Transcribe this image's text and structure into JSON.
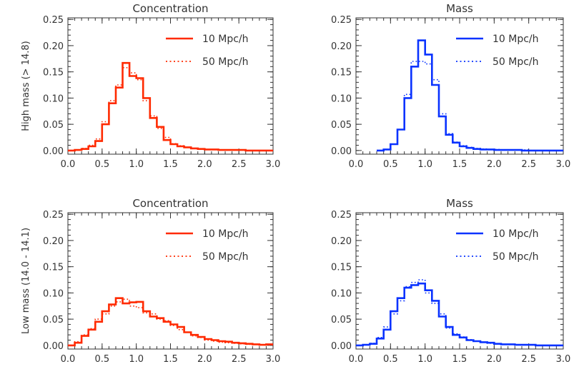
{
  "chart_data": [
    {
      "type": "line",
      "title": "Concentration",
      "ylabel": "High mass (> 14.8)",
      "xlabel": "",
      "xlim": [
        0,
        3
      ],
      "ylim": [
        0,
        0.25
      ],
      "xticks": [
        "0.0",
        "0.5",
        "1.0",
        "1.5",
        "2.0",
        "2.5",
        "3.0"
      ],
      "yticks": [
        "0.00",
        "0.05",
        "0.10",
        "0.15",
        "0.20",
        "0.25"
      ],
      "bin_width": 0.1,
      "legend_position": "top-right",
      "color": "#ff2a00",
      "series": [
        {
          "name": "10 Mpc/h",
          "style": "solid",
          "x": [
            0.0,
            0.1,
            0.2,
            0.3,
            0.4,
            0.5,
            0.6,
            0.7,
            0.8,
            0.9,
            1.0,
            1.1,
            1.2,
            1.3,
            1.4,
            1.5,
            1.6,
            1.7,
            1.8,
            1.9,
            2.0,
            2.1,
            2.2,
            2.3,
            2.4,
            2.5,
            2.6,
            2.7,
            2.8,
            2.9
          ],
          "y": [
            0.0,
            0.001,
            0.003,
            0.008,
            0.018,
            0.05,
            0.09,
            0.12,
            0.167,
            0.142,
            0.138,
            0.1,
            0.062,
            0.045,
            0.02,
            0.012,
            0.008,
            0.006,
            0.004,
            0.003,
            0.002,
            0.002,
            0.001,
            0.001,
            0.001,
            0.001,
            0.0,
            0.0,
            0.0,
            0.0
          ]
        },
        {
          "name": "50 Mpc/h",
          "style": "dotted",
          "x": [
            0.0,
            0.1,
            0.2,
            0.3,
            0.4,
            0.5,
            0.6,
            0.7,
            0.8,
            0.9,
            1.0,
            1.1,
            1.2,
            1.3,
            1.4,
            1.5,
            1.6,
            1.7,
            1.8,
            1.9,
            2.0,
            2.1,
            2.2,
            2.3,
            2.4,
            2.5,
            2.6,
            2.7,
            2.8,
            2.9
          ],
          "y": [
            0.0,
            0.001,
            0.004,
            0.01,
            0.022,
            0.055,
            0.095,
            0.125,
            0.158,
            0.148,
            0.135,
            0.095,
            0.066,
            0.042,
            0.025,
            0.013,
            0.009,
            0.006,
            0.004,
            0.003,
            0.002,
            0.002,
            0.001,
            0.001,
            0.001,
            0.001,
            0.0,
            0.0,
            0.0,
            0.0
          ]
        }
      ]
    },
    {
      "type": "line",
      "title": "Mass",
      "ylabel": "",
      "xlabel": "",
      "xlim": [
        0,
        3
      ],
      "ylim": [
        0,
        0.25
      ],
      "xticks": [
        "0.0",
        "0.5",
        "1.0",
        "1.5",
        "2.0",
        "2.5",
        "3.0"
      ],
      "yticks": [
        "0.00",
        "0.05",
        "0.10",
        "0.15",
        "0.20",
        "0.25"
      ],
      "bin_width": 0.1,
      "legend_position": "top-right",
      "color": "#0a33ff",
      "series": [
        {
          "name": "10 Mpc/h",
          "style": "solid",
          "x": [
            0.3,
            0.4,
            0.5,
            0.6,
            0.7,
            0.8,
            0.9,
            1.0,
            1.1,
            1.2,
            1.3,
            1.4,
            1.5,
            1.6,
            1.7,
            1.8,
            1.9,
            2.0,
            2.1,
            2.2,
            2.3,
            2.4,
            2.5,
            2.6,
            2.7,
            2.8,
            2.9
          ],
          "y": [
            0.0,
            0.002,
            0.012,
            0.04,
            0.1,
            0.16,
            0.21,
            0.183,
            0.125,
            0.065,
            0.03,
            0.015,
            0.008,
            0.005,
            0.003,
            0.002,
            0.002,
            0.001,
            0.001,
            0.001,
            0.001,
            0.0,
            0.0,
            0.0,
            0.0,
            0.0,
            0.0
          ]
        },
        {
          "name": "50 Mpc/h",
          "style": "dotted",
          "x": [
            0.3,
            0.4,
            0.5,
            0.6,
            0.7,
            0.8,
            0.9,
            1.0,
            1.1,
            1.2,
            1.3,
            1.4,
            1.5,
            1.6,
            1.7,
            1.8,
            1.9,
            2.0,
            2.1,
            2.2,
            2.3,
            2.4,
            2.5,
            2.6,
            2.7,
            2.8,
            2.9
          ],
          "y": [
            0.0,
            0.002,
            0.012,
            0.04,
            0.107,
            0.17,
            0.17,
            0.165,
            0.135,
            0.07,
            0.032,
            0.016,
            0.009,
            0.006,
            0.004,
            0.003,
            0.002,
            0.002,
            0.001,
            0.001,
            0.001,
            0.001,
            0.0,
            0.0,
            0.0,
            0.0,
            0.0
          ]
        }
      ]
    },
    {
      "type": "line",
      "title": "Concentration",
      "ylabel": "Low mass (14.0 - 14.1)",
      "xlabel": "",
      "xlim": [
        0,
        3
      ],
      "ylim": [
        0,
        0.25
      ],
      "xticks": [
        "0.0",
        "0.5",
        "1.0",
        "1.5",
        "2.0",
        "2.5",
        "3.0"
      ],
      "yticks": [
        "0.00",
        "0.05",
        "0.10",
        "0.15",
        "0.20",
        "0.25"
      ],
      "bin_width": 0.1,
      "legend_position": "top-right",
      "color": "#ff2a00",
      "series": [
        {
          "name": "10 Mpc/h",
          "style": "solid",
          "x": [
            0.0,
            0.1,
            0.2,
            0.3,
            0.4,
            0.5,
            0.6,
            0.7,
            0.8,
            0.9,
            1.0,
            1.1,
            1.2,
            1.3,
            1.4,
            1.5,
            1.6,
            1.7,
            1.8,
            1.9,
            2.0,
            2.1,
            2.2,
            2.3,
            2.4,
            2.5,
            2.6,
            2.7,
            2.8,
            2.9
          ],
          "y": [
            0.0,
            0.005,
            0.018,
            0.03,
            0.045,
            0.065,
            0.078,
            0.09,
            0.08,
            0.082,
            0.083,
            0.065,
            0.055,
            0.052,
            0.045,
            0.04,
            0.035,
            0.025,
            0.02,
            0.016,
            0.012,
            0.01,
            0.008,
            0.007,
            0.005,
            0.004,
            0.003,
            0.002,
            0.001,
            0.002
          ]
        },
        {
          "name": "50 Mpc/h",
          "style": "dotted",
          "x": [
            0.0,
            0.1,
            0.2,
            0.3,
            0.4,
            0.5,
            0.6,
            0.7,
            0.8,
            0.9,
            1.0,
            1.1,
            1.2,
            1.3,
            1.4,
            1.5,
            1.6,
            1.7,
            1.8,
            1.9,
            2.0,
            2.1,
            2.2,
            2.3,
            2.4,
            2.5,
            2.6,
            2.7,
            2.8,
            2.9
          ],
          "y": [
            0.0,
            0.007,
            0.02,
            0.032,
            0.05,
            0.06,
            0.075,
            0.083,
            0.088,
            0.075,
            0.072,
            0.062,
            0.06,
            0.05,
            0.047,
            0.038,
            0.03,
            0.025,
            0.018,
            0.015,
            0.01,
            0.008,
            0.006,
            0.005,
            0.004,
            0.003,
            0.002,
            0.002,
            0.001,
            0.001
          ]
        }
      ]
    },
    {
      "type": "line",
      "title": "Mass",
      "ylabel": "",
      "xlabel": "",
      "xlim": [
        0,
        3
      ],
      "ylim": [
        0,
        0.25
      ],
      "xticks": [
        "0.0",
        "0.5",
        "1.0",
        "1.5",
        "2.0",
        "2.5",
        "3.0"
      ],
      "yticks": [
        "0.00",
        "0.05",
        "0.10",
        "0.15",
        "0.20",
        "0.25"
      ],
      "bin_width": 0.1,
      "legend_position": "top-right",
      "color": "#0a33ff",
      "series": [
        {
          "name": "10 Mpc/h",
          "style": "solid",
          "x": [
            0.0,
            0.1,
            0.2,
            0.3,
            0.4,
            0.5,
            0.6,
            0.7,
            0.8,
            0.9,
            1.0,
            1.1,
            1.2,
            1.3,
            1.4,
            1.5,
            1.6,
            1.7,
            1.8,
            1.9,
            2.0,
            2.1,
            2.2,
            2.3,
            2.4,
            2.5,
            2.6,
            2.7,
            2.8,
            2.9
          ],
          "y": [
            0.0,
            0.001,
            0.003,
            0.013,
            0.03,
            0.065,
            0.09,
            0.11,
            0.115,
            0.118,
            0.105,
            0.085,
            0.055,
            0.035,
            0.02,
            0.015,
            0.01,
            0.008,
            0.006,
            0.005,
            0.003,
            0.002,
            0.002,
            0.001,
            0.001,
            0.001,
            0.0,
            0.0,
            0.0,
            0.0
          ]
        },
        {
          "name": "50 Mpc/h",
          "style": "dotted",
          "x": [
            0.0,
            0.1,
            0.2,
            0.3,
            0.4,
            0.5,
            0.6,
            0.7,
            0.8,
            0.9,
            1.0,
            1.1,
            1.2,
            1.3,
            1.4,
            1.5,
            1.6,
            1.7,
            1.8,
            1.9,
            2.0,
            2.1,
            2.2,
            2.3,
            2.4,
            2.5,
            2.6,
            2.7,
            2.8,
            2.9
          ],
          "y": [
            0.0,
            0.001,
            0.004,
            0.015,
            0.035,
            0.06,
            0.085,
            0.112,
            0.12,
            0.125,
            0.1,
            0.08,
            0.06,
            0.033,
            0.022,
            0.016,
            0.011,
            0.008,
            0.006,
            0.004,
            0.003,
            0.002,
            0.002,
            0.001,
            0.001,
            0.001,
            0.0,
            0.0,
            0.0,
            0.0
          ]
        }
      ]
    }
  ]
}
